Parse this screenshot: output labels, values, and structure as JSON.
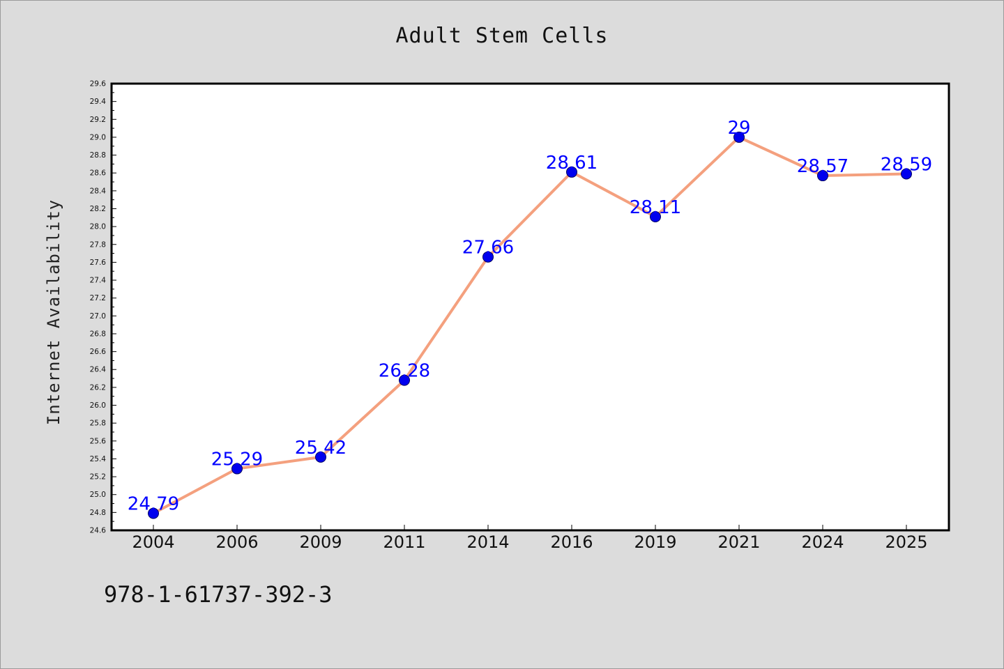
{
  "chart_data": {
    "type": "line",
    "title": "Adult Stem Cells",
    "xlabel": "",
    "ylabel": "Internet Availability",
    "categories": [
      "2004",
      "2006",
      "2009",
      "2011",
      "2014",
      "2016",
      "2019",
      "2021",
      "2024",
      "2025"
    ],
    "series": [
      {
        "values": [
          24.79,
          25.29,
          25.42,
          26.28,
          27.66,
          28.61,
          28.11,
          29,
          28.57,
          28.59
        ],
        "data_labels": [
          "24.79",
          "25.29",
          "25.42",
          "26.28",
          "27.66",
          "28.61",
          "28.11",
          "29",
          "28.57",
          "28.59"
        ]
      }
    ],
    "ylim": [
      24.6,
      29.6
    ],
    "y_ticks": [
      "24.6",
      "24.8",
      "25.0",
      "25.2",
      "25.4",
      "25.6",
      "25.8",
      "26.0",
      "26.2",
      "26.4",
      "26.6",
      "26.8",
      "27.0",
      "27.2",
      "27.4",
      "27.6",
      "27.8",
      "28.0",
      "28.2",
      "28.4",
      "28.6",
      "28.8",
      "29.0",
      "29.2",
      "29.4",
      "29.6"
    ],
    "grid": false,
    "legend": "none",
    "colors": {
      "line": "#f4a07e",
      "marker": "#0000ee",
      "data_label": "#0000ff",
      "background": "#dcdcdc",
      "plot_area": "#ffffff"
    }
  },
  "footnote": "978-1-61737-392-3"
}
